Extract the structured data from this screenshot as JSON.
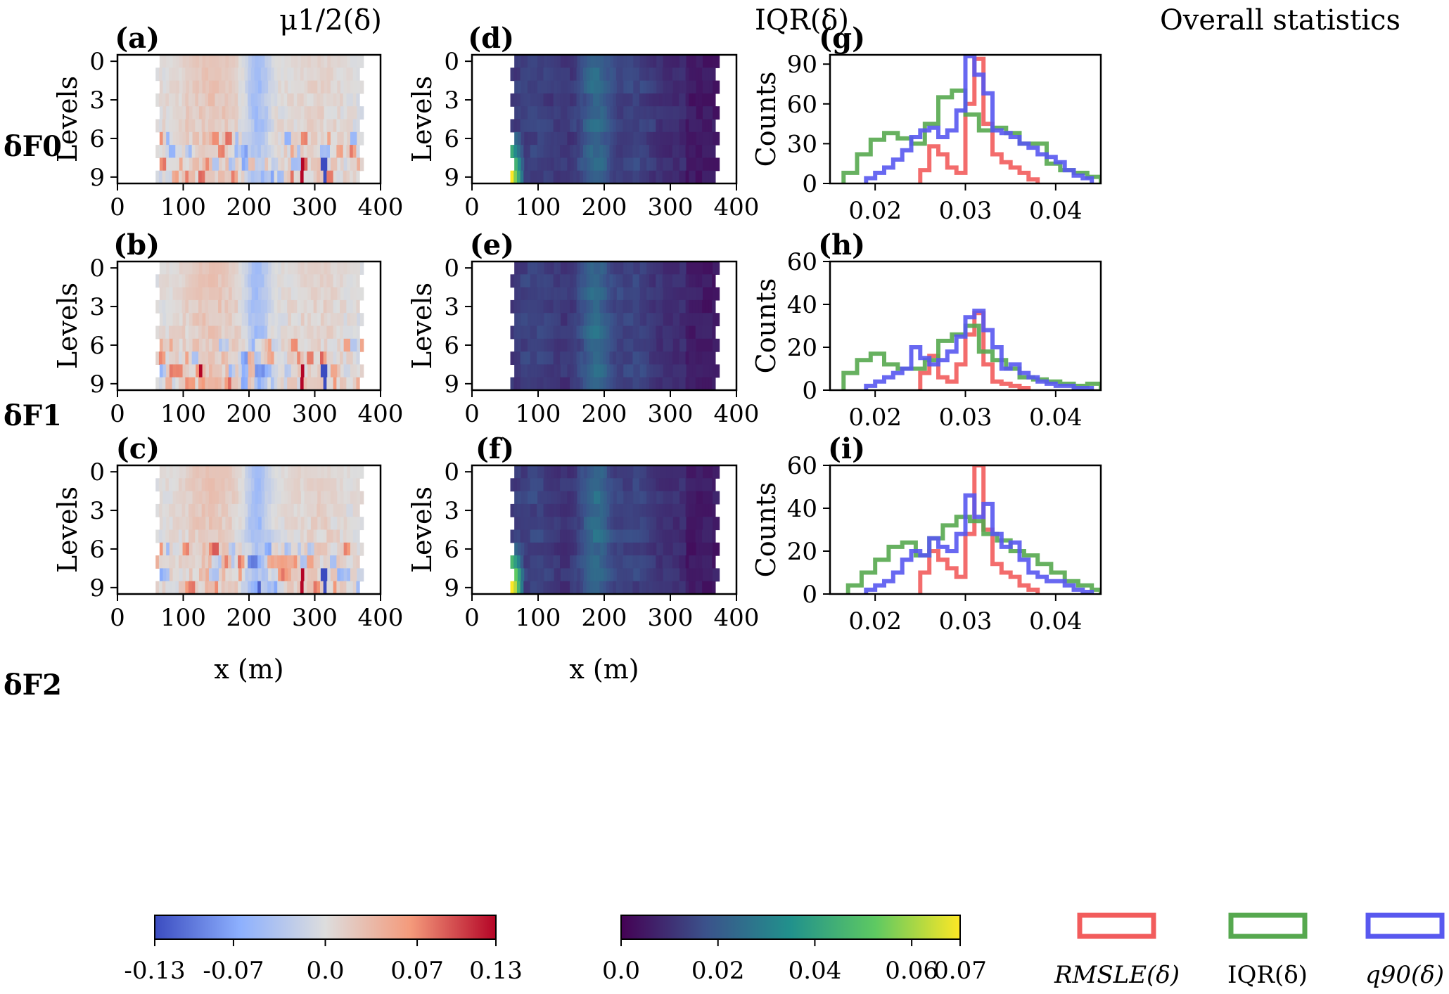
{
  "figure": {
    "column_titles": [
      "μ1/2(δ)",
      "IQR(δ)",
      "Overall statistics"
    ],
    "row_labels": [
      "δF0",
      "δF1",
      "δF2"
    ],
    "panel_letters": {
      "median": [
        "(a)",
        "(b)",
        "(c)"
      ],
      "iqr": [
        "(d)",
        "(e)",
        "(f)"
      ],
      "hist": [
        "(g)",
        "(h)",
        "(i)"
      ]
    },
    "heatmap_ylabel": "Levels",
    "heatmap_xlabel": "x (m)",
    "hist_ylabel": "Counts",
    "colorbar_median_ticks": [
      "-0.13",
      "-0.07",
      "0.0",
      "0.07",
      "0.13"
    ],
    "colorbar_iqr_ticks": [
      "0.0",
      "0.02",
      "0.04",
      "0.06",
      "0.07"
    ],
    "legend": [
      {
        "label": "RMSLE(δ)",
        "color": "#f25c5c"
      },
      {
        "label": "IQR(δ)",
        "color": "#56a84f"
      },
      {
        "label": "q90(δ)",
        "color": "#5858ef"
      }
    ]
  },
  "chart_data": [
    {
      "type": "heatmap",
      "panel": "(a)",
      "row": "δF0",
      "quantity": "median",
      "x_range": [
        0,
        400
      ],
      "y_levels": [
        0,
        9
      ],
      "y_inverted": true,
      "x_ticks": [
        0,
        100,
        200,
        300,
        400
      ],
      "y_ticks": [
        0,
        3,
        6,
        9
      ],
      "colormap": "coolwarm",
      "clim": [
        -0.13,
        0.13
      ],
      "data_extent_x": [
        58,
        368
      ]
    },
    {
      "type": "heatmap",
      "panel": "(b)",
      "row": "δF1",
      "quantity": "median",
      "x_range": [
        0,
        400
      ],
      "y_levels": [
        0,
        9
      ],
      "y_inverted": true,
      "x_ticks": [
        0,
        100,
        200,
        300,
        400
      ],
      "y_ticks": [
        0,
        3,
        6,
        9
      ],
      "colormap": "coolwarm",
      "clim": [
        -0.13,
        0.13
      ],
      "data_extent_x": [
        58,
        368
      ]
    },
    {
      "type": "heatmap",
      "panel": "(c)",
      "row": "δF2",
      "quantity": "median",
      "x_range": [
        0,
        400
      ],
      "y_levels": [
        0,
        9
      ],
      "y_inverted": true,
      "x_ticks": [
        0,
        100,
        200,
        300,
        400
      ],
      "y_ticks": [
        0,
        3,
        6,
        9
      ],
      "colormap": "coolwarm",
      "clim": [
        -0.13,
        0.13
      ],
      "data_extent_x": [
        58,
        368
      ]
    },
    {
      "type": "heatmap",
      "panel": "(d)",
      "row": "δF0",
      "quantity": "IQR",
      "x_range": [
        0,
        400
      ],
      "y_levels": [
        0,
        9
      ],
      "y_inverted": true,
      "x_ticks": [
        0,
        100,
        200,
        300,
        400
      ],
      "y_ticks": [
        0,
        3,
        6,
        9
      ],
      "colormap": "viridis",
      "clim": [
        0.0,
        0.07
      ],
      "data_extent_x": [
        58,
        368
      ],
      "left_edge_boost": 0.06
    },
    {
      "type": "heatmap",
      "panel": "(e)",
      "row": "δF1",
      "quantity": "IQR",
      "x_range": [
        0,
        400
      ],
      "y_levels": [
        0,
        9
      ],
      "y_inverted": true,
      "x_ticks": [
        0,
        100,
        200,
        300,
        400
      ],
      "y_ticks": [
        0,
        3,
        6,
        9
      ],
      "colormap": "viridis",
      "clim": [
        0.0,
        0.07
      ],
      "data_extent_x": [
        58,
        368
      ],
      "left_edge_boost": 0.0
    },
    {
      "type": "heatmap",
      "panel": "(f)",
      "row": "δF2",
      "quantity": "IQR",
      "x_range": [
        0,
        400
      ],
      "y_levels": [
        0,
        9
      ],
      "y_inverted": true,
      "x_ticks": [
        0,
        100,
        200,
        300,
        400
      ],
      "y_ticks": [
        0,
        3,
        6,
        9
      ],
      "colormap": "viridis",
      "clim": [
        0.0,
        0.07
      ],
      "data_extent_x": [
        58,
        368
      ],
      "left_edge_boost": 0.07
    },
    {
      "type": "histogram",
      "panel": "(g)",
      "row": "δF0",
      "xlim": [
        0.015,
        0.045
      ],
      "ylim": [
        0,
        97
      ],
      "x_ticks": [
        0.02,
        0.03,
        0.04
      ],
      "y_ticks": [
        0,
        30,
        60,
        90
      ],
      "series": [
        {
          "name": "RMSLE(δ)",
          "color": "#f25c5c",
          "edges": [
            0.025,
            0.026,
            0.027,
            0.028,
            0.029,
            0.03,
            0.031,
            0.032,
            0.033,
            0.034,
            0.035,
            0.036,
            0.037,
            0.038
          ],
          "counts": [
            10,
            28,
            22,
            12,
            8,
            60,
            94,
            45,
            22,
            16,
            12,
            8,
            3
          ]
        },
        {
          "name": "IQR(δ)",
          "color": "#56a84f",
          "edges": [
            0.0165,
            0.018,
            0.0195,
            0.021,
            0.0225,
            0.024,
            0.0255,
            0.027,
            0.0285,
            0.03,
            0.0315,
            0.033,
            0.0345,
            0.036,
            0.0375,
            0.039,
            0.0405,
            0.042,
            0.0435,
            0.045
          ],
          "counts": [
            8,
            22,
            33,
            38,
            34,
            30,
            45,
            65,
            70,
            52,
            40,
            42,
            38,
            30,
            30,
            15,
            10,
            8,
            5
          ]
        },
        {
          "name": "q90(δ)",
          "color": "#5858ef",
          "edges": [
            0.019,
            0.02,
            0.021,
            0.022,
            0.023,
            0.024,
            0.025,
            0.026,
            0.027,
            0.028,
            0.029,
            0.03,
            0.031,
            0.032,
            0.033,
            0.034,
            0.035,
            0.036,
            0.037,
            0.038,
            0.039,
            0.04,
            0.041,
            0.042,
            0.043,
            0.044
          ],
          "counts": [
            4,
            8,
            12,
            18,
            25,
            35,
            40,
            42,
            35,
            40,
            55,
            96,
            82,
            68,
            40,
            38,
            35,
            30,
            27,
            22,
            20,
            16,
            10,
            6,
            4
          ]
        }
      ]
    },
    {
      "type": "histogram",
      "panel": "(h)",
      "row": "δF1",
      "xlim": [
        0.015,
        0.045
      ],
      "ylim": [
        0,
        60
      ],
      "x_ticks": [
        0.02,
        0.03,
        0.04
      ],
      "y_ticks": [
        0,
        20,
        40,
        60
      ],
      "series": [
        {
          "name": "RMSLE(δ)",
          "color": "#f25c5c",
          "edges": [
            0.025,
            0.026,
            0.027,
            0.028,
            0.029,
            0.03,
            0.031,
            0.032,
            0.033,
            0.034,
            0.035,
            0.036,
            0.037
          ],
          "counts": [
            8,
            16,
            6,
            4,
            12,
            26,
            36,
            12,
            4,
            3,
            2,
            1
          ]
        },
        {
          "name": "IQR(δ)",
          "color": "#56a84f",
          "edges": [
            0.0165,
            0.018,
            0.0195,
            0.021,
            0.0225,
            0.024,
            0.0255,
            0.027,
            0.0285,
            0.03,
            0.0315,
            0.033,
            0.0345,
            0.036,
            0.0375,
            0.039,
            0.0405,
            0.042,
            0.0435,
            0.045
          ],
          "counts": [
            8,
            14,
            17,
            12,
            10,
            10,
            14,
            23,
            26,
            30,
            18,
            14,
            10,
            6,
            5,
            4,
            3,
            2,
            3
          ]
        },
        {
          "name": "q90(δ)",
          "color": "#5858ef",
          "edges": [
            0.019,
            0.02,
            0.021,
            0.022,
            0.023,
            0.024,
            0.025,
            0.026,
            0.027,
            0.028,
            0.029,
            0.03,
            0.031,
            0.032,
            0.033,
            0.034,
            0.035,
            0.036,
            0.037,
            0.038,
            0.039,
            0.04,
            0.041,
            0.042,
            0.043,
            0.044
          ],
          "counts": [
            2,
            4,
            6,
            8,
            10,
            20,
            15,
            12,
            14,
            18,
            25,
            34,
            37,
            28,
            20,
            10,
            12,
            8,
            6,
            4,
            3,
            2,
            2,
            1,
            1
          ]
        }
      ]
    },
    {
      "type": "histogram",
      "panel": "(i)",
      "row": "δF2",
      "xlim": [
        0.015,
        0.045
      ],
      "ylim": [
        0,
        60
      ],
      "x_ticks": [
        0.02,
        0.03,
        0.04
      ],
      "y_ticks": [
        0,
        20,
        40,
        60
      ],
      "series": [
        {
          "name": "RMSLE(δ)",
          "color": "#f25c5c",
          "edges": [
            0.025,
            0.026,
            0.027,
            0.028,
            0.029,
            0.03,
            0.031,
            0.032,
            0.033,
            0.034,
            0.035,
            0.036,
            0.037,
            0.038
          ],
          "counts": [
            10,
            20,
            16,
            12,
            8,
            28,
            60,
            30,
            14,
            10,
            8,
            4,
            2
          ]
        },
        {
          "name": "IQR(δ)",
          "color": "#56a84f",
          "edges": [
            0.017,
            0.0185,
            0.02,
            0.0215,
            0.023,
            0.0245,
            0.026,
            0.0275,
            0.029,
            0.0305,
            0.032,
            0.0335,
            0.035,
            0.0365,
            0.038,
            0.0395,
            0.041,
            0.0425,
            0.044,
            0.045
          ],
          "counts": [
            4,
            10,
            16,
            22,
            24,
            18,
            26,
            32,
            36,
            34,
            28,
            25,
            20,
            18,
            14,
            10,
            6,
            4,
            2
          ]
        },
        {
          "name": "q90(δ)",
          "color": "#5858ef",
          "edges": [
            0.019,
            0.02,
            0.021,
            0.022,
            0.023,
            0.024,
            0.025,
            0.026,
            0.027,
            0.028,
            0.029,
            0.03,
            0.031,
            0.032,
            0.033,
            0.034,
            0.035,
            0.036,
            0.037,
            0.038,
            0.039,
            0.04,
            0.041,
            0.042,
            0.043,
            0.044
          ],
          "counts": [
            2,
            4,
            6,
            10,
            16,
            20,
            18,
            26,
            22,
            20,
            28,
            46,
            36,
            42,
            28,
            22,
            24,
            16,
            10,
            8,
            6,
            6,
            4,
            2,
            1
          ]
        }
      ]
    }
  ]
}
